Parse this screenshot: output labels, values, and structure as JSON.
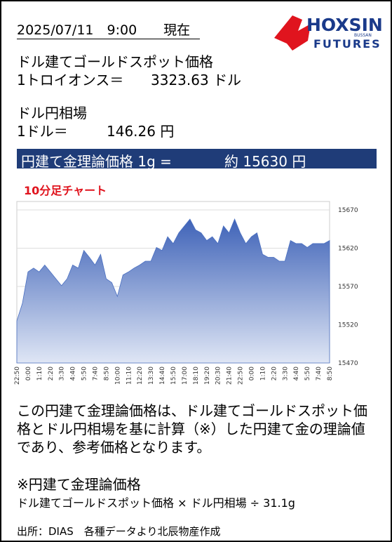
{
  "header": {
    "datetime": "2025/07/11　9:00　　現在",
    "logo_main": "HOXSIN",
    "logo_small": "BUSSAN",
    "logo_sub": "FUTURES"
  },
  "gold": {
    "title": "ドル建てゴールドスポット価格",
    "unit_label": "1トロイオンス＝",
    "price": "3323.63 ドル"
  },
  "fx": {
    "title": "ドル円相場",
    "unit_label": "1ドル＝",
    "rate": "146.26 円"
  },
  "banner": {
    "label": "円建て金理論価格 1g =",
    "value": "約 15630 円"
  },
  "chart_data": {
    "type": "area",
    "title": "10分足チャート",
    "color": "#4a6fc0",
    "grid": true,
    "categories": [
      "22:50",
      null,
      "0:00",
      null,
      "1:10",
      null,
      "2:20",
      null,
      "3:30",
      null,
      "4:40",
      null,
      "5:50",
      null,
      "7:40",
      null,
      "8:50",
      null,
      "10:00",
      null,
      "11:10",
      null,
      "12:20",
      null,
      "13:30",
      null,
      "14:40",
      null,
      "15:50",
      null,
      "17:00",
      null,
      "18:10",
      null,
      "19:20",
      null,
      "20:30",
      null,
      "21:40",
      null,
      "22:50",
      null,
      "0:00",
      null,
      "1:10",
      null,
      "2:20",
      null,
      "3:30",
      null,
      "4:40",
      null,
      "5:50",
      null,
      "7:40",
      null,
      "8:50"
    ],
    "values": [
      15525,
      15548,
      15589,
      15594,
      15589,
      15598,
      15589,
      15580,
      15571,
      15580,
      15598,
      15594,
      15617,
      15608,
      15598,
      15612,
      15580,
      15575,
      15557,
      15585,
      15589,
      15594,
      15598,
      15603,
      15603,
      15621,
      15617,
      15635,
      15626,
      15640,
      15649,
      15658,
      15644,
      15640,
      15630,
      15635,
      15626,
      15649,
      15640,
      15658,
      15640,
      15626,
      15635,
      15640,
      15612,
      15608,
      15608,
      15603,
      15603,
      15630,
      15626,
      15626,
      15621,
      15626,
      15626,
      15626,
      15630
    ],
    "ylim": [
      15470,
      15681
    ],
    "yticks": [
      15470,
      15520,
      15570,
      15620,
      15670
    ]
  },
  "description": "この円建て金理論価格は、ドル建てゴールドスポット価格とドル円相場を基に計算（※）した円建て金の理論値であり、参考価格となります。",
  "formula": {
    "title": "※円建て金理論価格",
    "text": "ドル建てゴールドスポット価格 × ドル円相場 ÷ 31.1g"
  },
  "source": "出所：DIAS　各種データより北辰物産作成"
}
